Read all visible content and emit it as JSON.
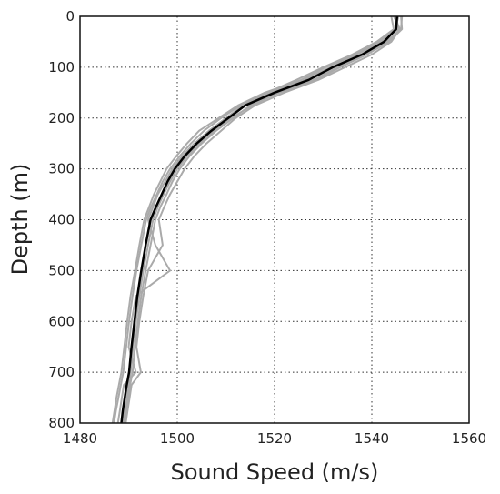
{
  "chart_data": {
    "type": "line",
    "title": "",
    "xlabel": "Sound Speed (m/s)",
    "ylabel": "Depth (m)",
    "xlim": [
      1480,
      1560
    ],
    "ylim": [
      800,
      0
    ],
    "y_inverted": true,
    "grid": true,
    "x_ticks": [
      "1480",
      "1500",
      "1520",
      "1540",
      "1560"
    ],
    "y_ticks": [
      "0",
      "100",
      "200",
      "300",
      "400",
      "500",
      "600",
      "700",
      "800"
    ],
    "colors": {
      "profiles": "#aaaaaa",
      "mean": "#000000"
    },
    "series": [
      {
        "role": "mean",
        "x": [
          1545.2,
          1545.0,
          1542.5,
          1538.0,
          1532.0,
          1527.0,
          1520.0,
          1514.0,
          1510.5,
          1507.0,
          1504.0,
          1501.5,
          1499.5,
          1498.0,
          1496.8,
          1495.6,
          1494.5,
          1493.5,
          1492.6,
          1491.8,
          1491.2,
          1490.6,
          1490.1,
          1489.6,
          1489.2,
          1488.8,
          1488.5
        ],
        "y": [
          0,
          25,
          50,
          75,
          100,
          125,
          150,
          175,
          200,
          225,
          250,
          275,
          300,
          325,
          350,
          375,
          400,
          450,
          500,
          550,
          600,
          650,
          700,
          725,
          750,
          775,
          800
        ]
      },
      {
        "role": "profile",
        "x": [
          1544.0,
          1544.5,
          1541.0,
          1536.0,
          1530.0,
          1524.5,
          1518.5,
          1513.0,
          1509.0,
          1505.5,
          1502.8,
          1500.5,
          1498.5,
          1497.0,
          1495.8,
          1494.6,
          1493.6,
          1492.6,
          1491.6,
          1490.8,
          1490.1,
          1489.5,
          1488.9,
          1488.4,
          1487.9,
          1487.4,
          1487.0
        ],
        "y": [
          0,
          25,
          50,
          75,
          100,
          125,
          150,
          175,
          200,
          225,
          250,
          275,
          300,
          325,
          350,
          375,
          400,
          450,
          500,
          550,
          600,
          650,
          700,
          725,
          750,
          775,
          800
        ]
      },
      {
        "role": "profile",
        "x": [
          1546.0,
          1546.2,
          1543.5,
          1539.0,
          1533.5,
          1528.5,
          1521.0,
          1515.0,
          1511.5,
          1508.0,
          1505.0,
          1502.5,
          1500.5,
          1499.0,
          1497.8,
          1496.5,
          1495.5,
          1494.5,
          1493.5,
          1492.6,
          1491.9,
          1491.3,
          1490.8,
          1490.3,
          1489.9,
          1489.5,
          1489.2
        ],
        "y": [
          0,
          25,
          50,
          75,
          100,
          125,
          150,
          175,
          200,
          225,
          250,
          275,
          300,
          325,
          350,
          375,
          400,
          450,
          500,
          550,
          600,
          650,
          700,
          725,
          750,
          775,
          800
        ]
      },
      {
        "role": "profile",
        "x": [
          1545.0,
          1545.5,
          1542.0,
          1537.0,
          1531.5,
          1526.0,
          1519.0,
          1513.5,
          1510.0,
          1506.5,
          1503.5,
          1501.0,
          1499.0,
          1497.5,
          1496.0,
          1495.0,
          1494.0,
          1495.5,
          1498.5,
          1491.5,
          1490.6,
          1490.0,
          1491.5,
          1489.0,
          1488.6,
          1488.2,
          1487.8
        ],
        "y": [
          0,
          25,
          50,
          75,
          100,
          125,
          150,
          175,
          200,
          225,
          250,
          275,
          300,
          325,
          350,
          375,
          400,
          450,
          500,
          550,
          600,
          650,
          700,
          725,
          750,
          775,
          800
        ]
      },
      {
        "role": "profile",
        "x": [
          1544.5,
          1545.8,
          1544.0,
          1540.0,
          1534.5,
          1529.0,
          1522.0,
          1516.0,
          1512.0,
          1509.0,
          1506.0,
          1503.5,
          1501.5,
          1500.0,
          1498.5,
          1497.3,
          1496.2,
          1497.0,
          1494.0,
          1493.0,
          1492.2,
          1491.6,
          1492.5,
          1490.6,
          1490.2,
          1489.8,
          1489.4
        ],
        "y": [
          0,
          25,
          50,
          75,
          100,
          125,
          150,
          175,
          200,
          225,
          250,
          275,
          300,
          325,
          350,
          375,
          400,
          450,
          500,
          550,
          600,
          650,
          700,
          725,
          750,
          775,
          800
        ]
      },
      {
        "role": "profile",
        "x": [
          1545.5,
          1544.8,
          1541.5,
          1536.5,
          1530.5,
          1525.5,
          1518.0,
          1512.5,
          1508.5,
          1504.5,
          1502.0,
          1499.8,
          1497.8,
          1496.5,
          1495.2,
          1494.2,
          1493.2,
          1492.2,
          1491.3,
          1490.4,
          1489.7,
          1489.1,
          1488.5,
          1488.0,
          1487.5,
          1487.1,
          1486.7
        ],
        "y": [
          0,
          25,
          50,
          75,
          100,
          125,
          150,
          175,
          200,
          225,
          250,
          275,
          300,
          325,
          350,
          375,
          400,
          450,
          500,
          550,
          600,
          650,
          700,
          725,
          750,
          775,
          800
        ]
      },
      {
        "role": "profile",
        "x": [
          1546.2,
          1546.0,
          1543.0,
          1538.5,
          1533.0,
          1528.0,
          1520.5,
          1515.5,
          1511.0,
          1507.5,
          1504.5,
          1502.0,
          1500.0,
          1498.5,
          1497.2,
          1496.0,
          1495.0,
          1494.0,
          1493.0,
          1492.2,
          1491.5,
          1490.9,
          1490.4,
          1490.0,
          1489.6,
          1489.2,
          1488.9
        ],
        "y": [
          0,
          25,
          50,
          75,
          100,
          125,
          150,
          175,
          200,
          225,
          250,
          275,
          300,
          325,
          350,
          375,
          400,
          450,
          500,
          550,
          600,
          650,
          700,
          725,
          750,
          775,
          800
        ]
      }
    ]
  }
}
